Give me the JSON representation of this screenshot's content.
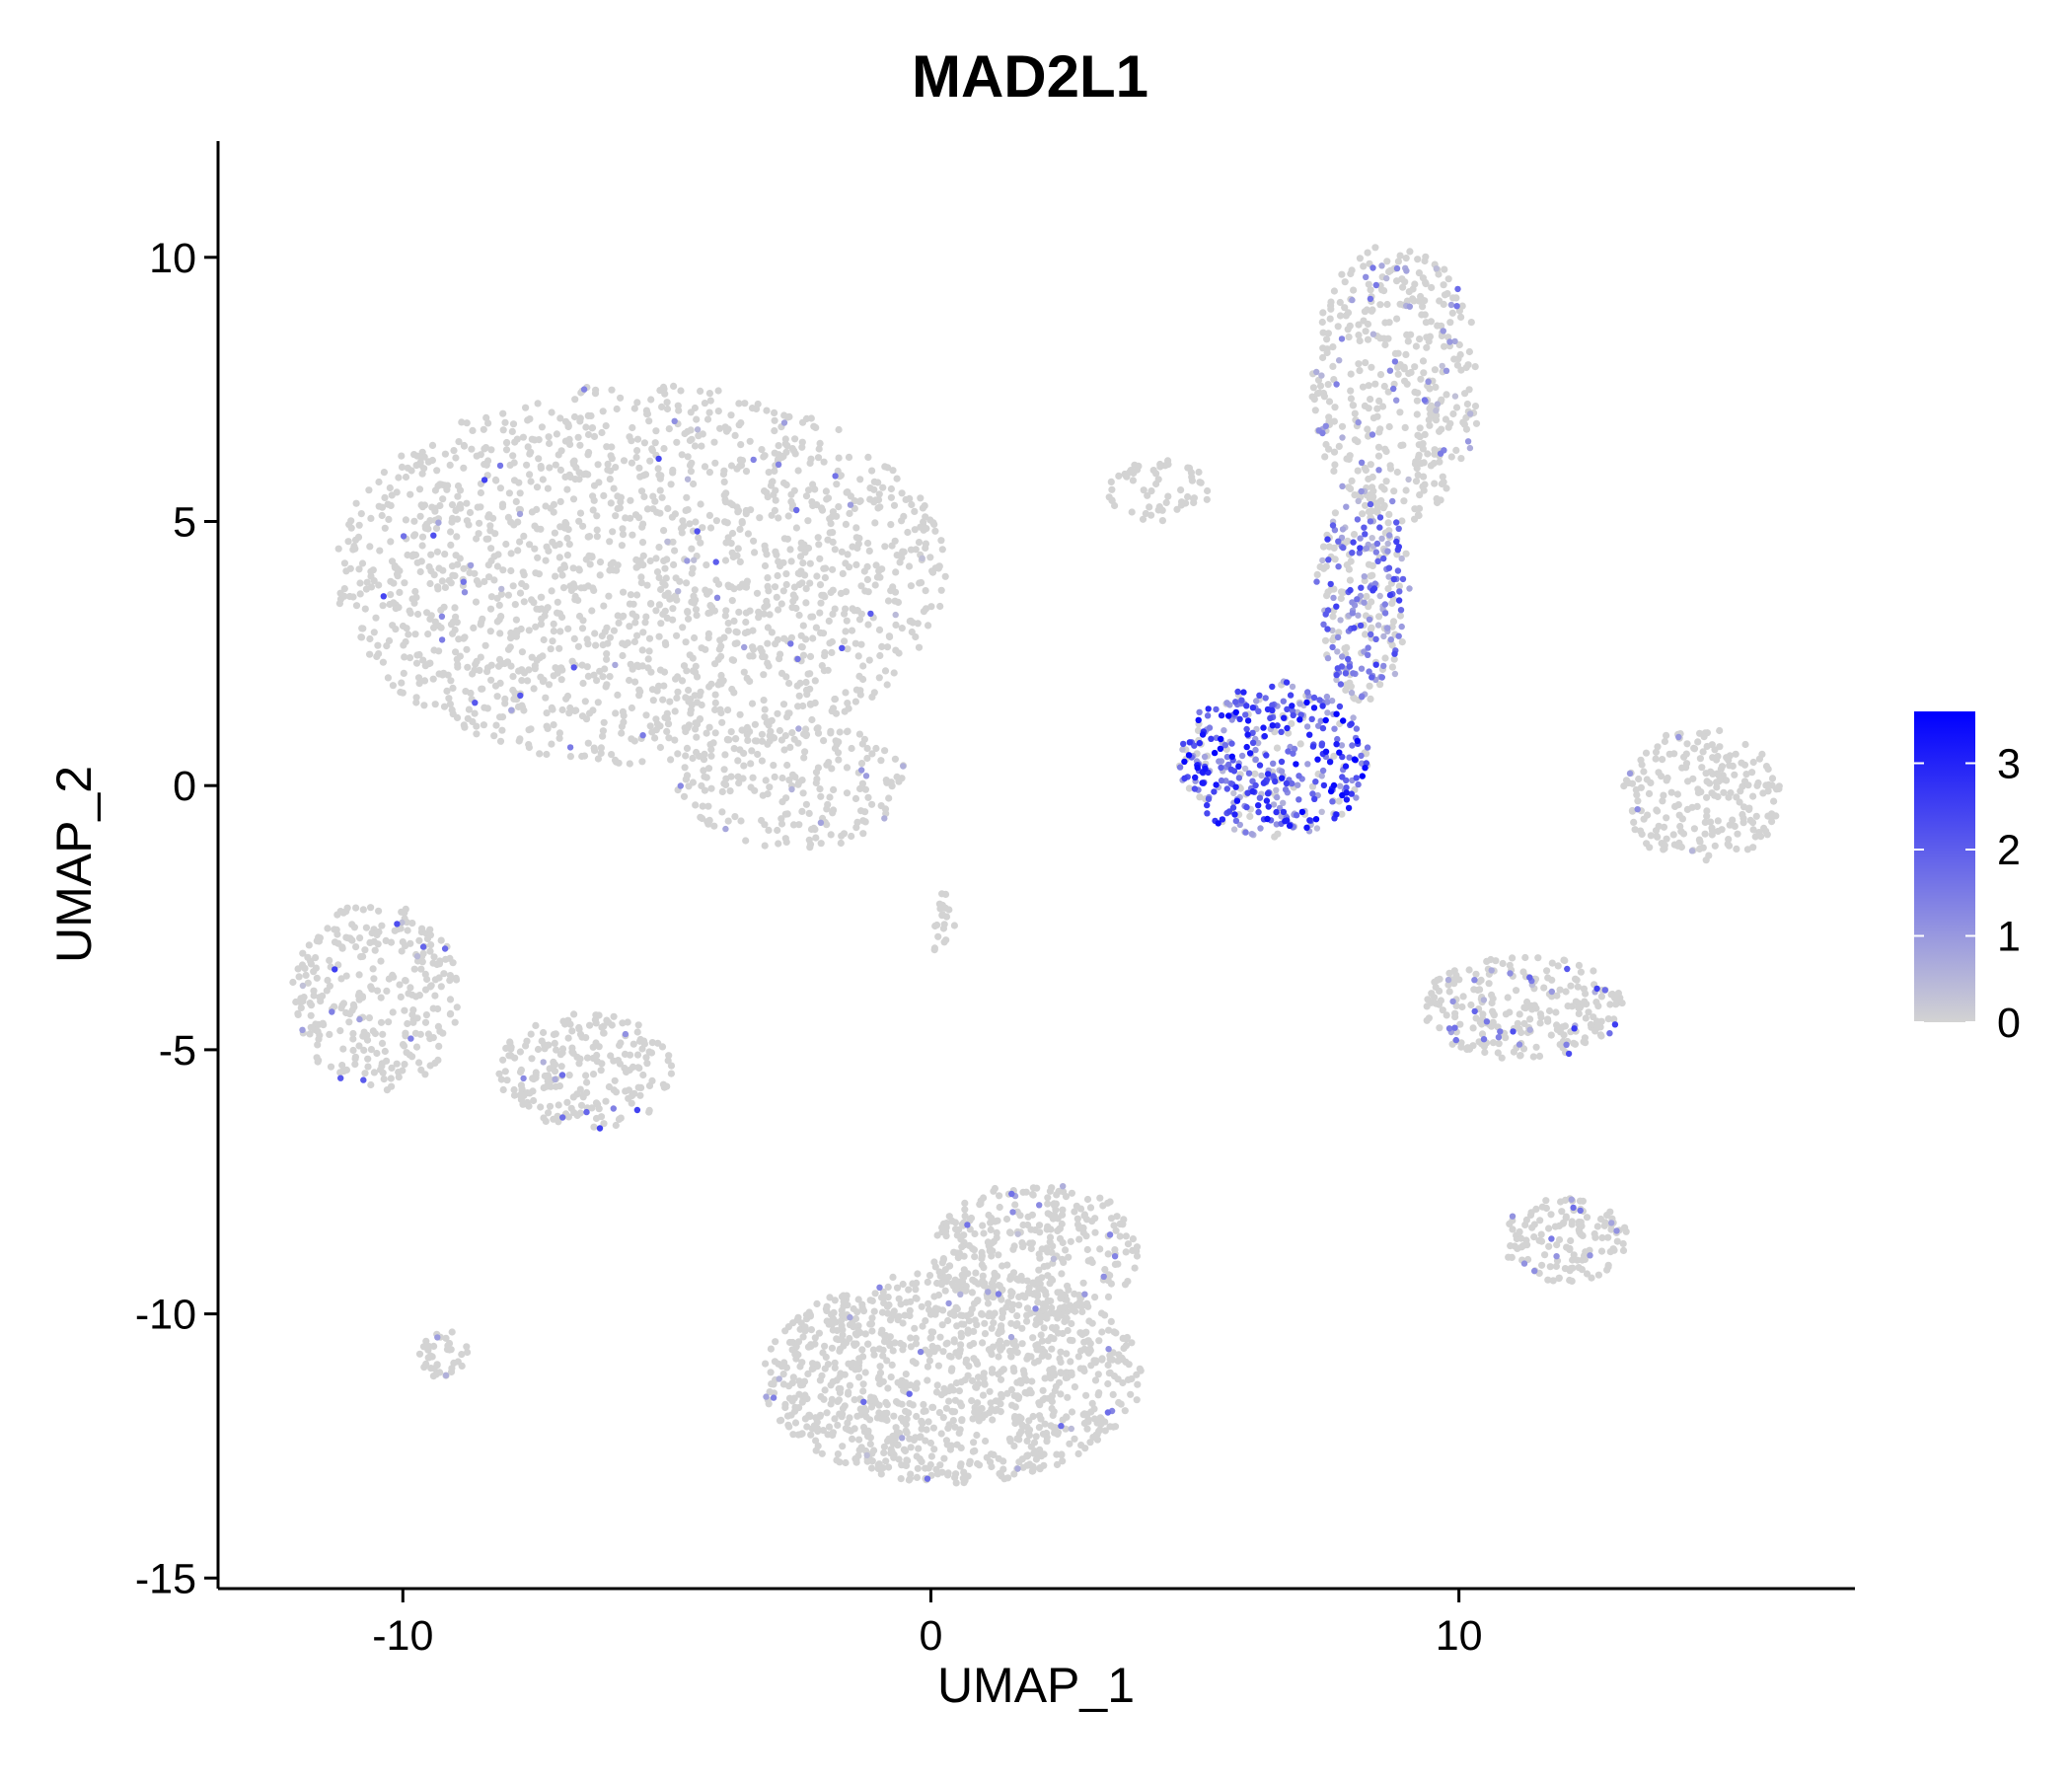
{
  "chart_data": {
    "type": "scatter",
    "title": "MAD2L1",
    "xlabel": "UMAP_1",
    "ylabel": "UMAP_2",
    "xlim": [
      -13.5,
      17.5
    ],
    "ylim": [
      -15.2,
      12.2
    ],
    "x_ticks": [
      {
        "value": -10,
        "label": "-10"
      },
      {
        "value": 0,
        "label": "0"
      },
      {
        "value": 10,
        "label": "10"
      }
    ],
    "y_ticks": [
      {
        "value": 10,
        "label": "10"
      },
      {
        "value": 5,
        "label": "5"
      },
      {
        "value": 0,
        "label": "0"
      },
      {
        "value": -5,
        "label": "-5"
      },
      {
        "value": -10,
        "label": "-10"
      },
      {
        "value": -15,
        "label": "-15"
      }
    ],
    "legend": {
      "title": "",
      "position": "right",
      "min": 0,
      "max": 3.6,
      "low_color": "#d3d3d3",
      "high_color": "#0000ff",
      "ticks": [
        {
          "value": 3,
          "label": "3"
        },
        {
          "value": 2,
          "label": "2"
        },
        {
          "value": 1,
          "label": "1"
        },
        {
          "value": 0,
          "label": "0"
        }
      ]
    },
    "grid": false,
    "clusters": [
      {
        "name": "top-left-large",
        "cx": -5.5,
        "cy": 4.0,
        "rx": 5.8,
        "ry": 3.6,
        "n": 1700,
        "expr_rate": 0.03,
        "expr_max": 2.5
      },
      {
        "name": "top-left-extension",
        "cx": -2.6,
        "cy": 0.0,
        "rx": 2.2,
        "ry": 1.2,
        "n": 200,
        "expr_rate": 0.04,
        "expr_max": 2.0
      },
      {
        "name": "small-upper-middle",
        "cx": 4.3,
        "cy": 5.6,
        "rx": 1.0,
        "ry": 0.6,
        "n": 60,
        "expr_rate": 0.02,
        "expr_max": 1.5
      },
      {
        "name": "top-right-upper",
        "cx": 8.8,
        "cy": 7.6,
        "rx": 1.6,
        "ry": 2.7,
        "n": 420,
        "expr_rate": 0.12,
        "expr_max": 1.8
      },
      {
        "name": "right-stem",
        "cx": 8.2,
        "cy": 3.6,
        "rx": 0.9,
        "ry": 2.0,
        "n": 260,
        "expr_rate": 0.55,
        "expr_max": 2.6
      },
      {
        "name": "right-high-expression-blob",
        "cx": 6.5,
        "cy": 0.5,
        "rx": 1.8,
        "ry": 1.5,
        "n": 420,
        "expr_rate": 0.85,
        "expr_max": 3.6
      },
      {
        "name": "far-right-crescent",
        "cx": 14.6,
        "cy": -0.2,
        "rx": 1.5,
        "ry": 1.3,
        "n": 220,
        "expr_rate": 0.03,
        "expr_max": 1.2
      },
      {
        "name": "left-middle",
        "cx": -10.5,
        "cy": -4.0,
        "rx": 1.6,
        "ry": 1.8,
        "n": 300,
        "expr_rate": 0.04,
        "expr_max": 2.8
      },
      {
        "name": "left-middle-2",
        "cx": -6.5,
        "cy": -5.4,
        "rx": 1.7,
        "ry": 1.1,
        "n": 220,
        "expr_rate": 0.03,
        "expr_max": 2.5
      },
      {
        "name": "center-thin",
        "cx": 0.2,
        "cy": -2.6,
        "rx": 0.25,
        "ry": 0.6,
        "n": 20,
        "expr_rate": 0.0,
        "expr_max": 0.5
      },
      {
        "name": "right-mid",
        "cx": 11.2,
        "cy": -4.2,
        "rx": 1.9,
        "ry": 1.0,
        "n": 260,
        "expr_rate": 0.1,
        "expr_max": 2.6
      },
      {
        "name": "bottom-center-large",
        "cx": 0.4,
        "cy": -11.2,
        "rx": 3.6,
        "ry": 2.0,
        "n": 1100,
        "expr_rate": 0.02,
        "expr_max": 2.0
      },
      {
        "name": "bottom-center-upper",
        "cx": 2.0,
        "cy": -8.8,
        "rx": 2.0,
        "ry": 1.3,
        "n": 320,
        "expr_rate": 0.06,
        "expr_max": 1.8
      },
      {
        "name": "bottom-right-small",
        "cx": 12.0,
        "cy": -8.6,
        "rx": 1.2,
        "ry": 0.8,
        "n": 140,
        "expr_rate": 0.05,
        "expr_max": 1.8
      },
      {
        "name": "bottom-left-tiny",
        "cx": -9.2,
        "cy": -10.8,
        "rx": 0.5,
        "ry": 0.5,
        "n": 40,
        "expr_rate": 0.03,
        "expr_max": 1.5
      }
    ]
  }
}
